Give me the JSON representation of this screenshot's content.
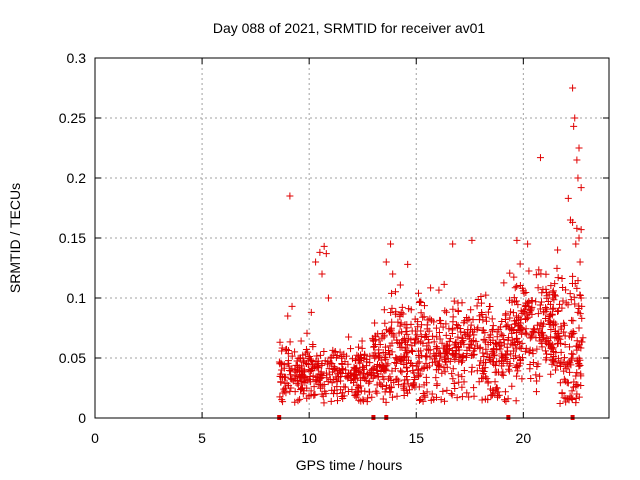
{
  "chart_data": {
    "type": "scatter",
    "title": "Day 088 of 2021, SRMTID for receiver av01",
    "xlabel": "GPS time / hours",
    "ylabel": "SRMTID / TECUs",
    "xlim": [
      0,
      24
    ],
    "ylim": [
      0,
      0.3
    ],
    "xticks": [
      0,
      5,
      10,
      15,
      20
    ],
    "xtick_labels": [
      "0",
      "5",
      "10",
      "15",
      "20"
    ],
    "yticks": [
      0,
      0.05,
      0.1,
      0.15,
      0.2,
      0.25,
      0.3
    ],
    "ytick_labels": [
      "0",
      "0.05",
      "0.1",
      "0.15",
      "0.2",
      "0.25",
      "0.3"
    ],
    "grid": true,
    "marker": "+",
    "color": "#e00000",
    "series": [
      {
        "name": "SRMTID",
        "points": [
          [
            9.1,
            0.185
          ],
          [
            22.3,
            0.275
          ],
          [
            22.4,
            0.25
          ],
          [
            22.35,
            0.243
          ],
          [
            20.8,
            0.217
          ],
          [
            22.6,
            0.225
          ],
          [
            22.5,
            0.215
          ],
          [
            22.55,
            0.2
          ],
          [
            22.7,
            0.192
          ],
          [
            22.1,
            0.183
          ],
          [
            22.2,
            0.165
          ],
          [
            22.3,
            0.163
          ],
          [
            22.5,
            0.158
          ],
          [
            22.6,
            0.15
          ],
          [
            22.7,
            0.157
          ],
          [
            22.45,
            0.145
          ],
          [
            22.65,
            0.13
          ],
          [
            22.3,
            0.118
          ],
          [
            22.5,
            0.108
          ],
          [
            22.7,
            0.1
          ],
          [
            22.4,
            0.095
          ],
          [
            22.55,
            0.088
          ],
          [
            22.6,
            0.075
          ],
          [
            22.3,
            0.07
          ],
          [
            22.5,
            0.06
          ],
          [
            22.6,
            0.045
          ],
          [
            22.45,
            0.035
          ],
          [
            22.5,
            0.02
          ],
          [
            10.7,
            0.143
          ],
          [
            10.5,
            0.138
          ],
          [
            10.8,
            0.137
          ],
          [
            10.3,
            0.13
          ],
          [
            10.6,
            0.12
          ],
          [
            10.9,
            0.1
          ],
          [
            10.1,
            0.088
          ],
          [
            13.8,
            0.145
          ],
          [
            13.6,
            0.13
          ],
          [
            13.9,
            0.12
          ],
          [
            14.6,
            0.128
          ],
          [
            16.7,
            0.145
          ],
          [
            17.6,
            0.148
          ],
          [
            19.7,
            0.148
          ],
          [
            20.2,
            0.145
          ],
          [
            21.6,
            0.14
          ],
          [
            9.2,
            0.093
          ],
          [
            9.0,
            0.085
          ]
        ]
      }
    ],
    "axis_markers_x": [
      8.6,
      13.0,
      13.6,
      19.3,
      22.3
    ]
  }
}
